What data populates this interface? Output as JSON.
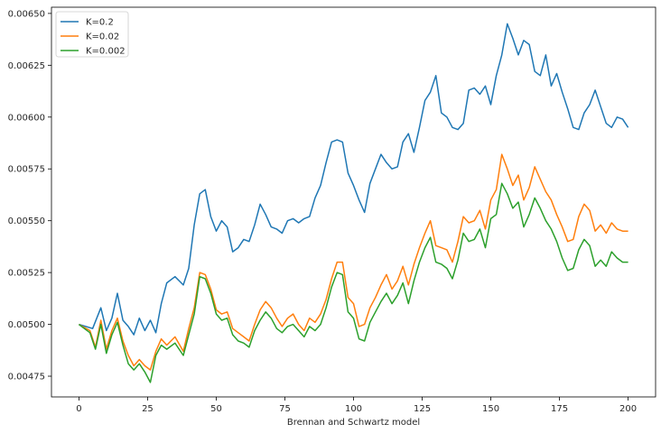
{
  "chart_data": {
    "type": "line",
    "title": "",
    "xlabel": "Brennan and Schwartz model",
    "ylabel": "",
    "xlim": [
      -10,
      210
    ],
    "ylim": [
      0.00465,
      0.00653
    ],
    "xticks": [
      0,
      25,
      50,
      75,
      100,
      125,
      150,
      175,
      200
    ],
    "yticks": [
      0.00475,
      0.005,
      0.00525,
      0.0055,
      0.00575,
      0.006,
      0.00625,
      0.0065
    ],
    "ytick_labels": [
      "0.00475",
      "0.00500",
      "0.00525",
      "0.00550",
      "0.00575",
      "0.00600",
      "0.00625",
      "0.00650"
    ],
    "grid": false,
    "legend_position": "top-left",
    "series": [
      {
        "name": "K=0.2",
        "color": "#1f77b4",
        "x": [
          0,
          5,
          8,
          10,
          12,
          14,
          16,
          18,
          20,
          22,
          24,
          26,
          28,
          30,
          32,
          35,
          38,
          40,
          42,
          44,
          46,
          48,
          50,
          52,
          54,
          56,
          58,
          60,
          62,
          64,
          66,
          68,
          70,
          72,
          74,
          76,
          78,
          80,
          82,
          84,
          86,
          88,
          90,
          92,
          94,
          96,
          98,
          100,
          102,
          104,
          106,
          108,
          110,
          112,
          114,
          116,
          118,
          120,
          122,
          124,
          126,
          128,
          130,
          132,
          134,
          136,
          138,
          140,
          142,
          144,
          146,
          148,
          150,
          152,
          154,
          156,
          158,
          160,
          162,
          164,
          166,
          168,
          170,
          172,
          174,
          176,
          178,
          180,
          182,
          184,
          186,
          188,
          190,
          192,
          194,
          196,
          198,
          200
        ],
        "values": [
          0.005,
          0.00498,
          0.00508,
          0.00497,
          0.00503,
          0.00515,
          0.00502,
          0.00499,
          0.00495,
          0.00503,
          0.00497,
          0.00502,
          0.00496,
          0.0051,
          0.0052,
          0.00523,
          0.00519,
          0.00527,
          0.00548,
          0.00563,
          0.00565,
          0.00552,
          0.00545,
          0.0055,
          0.00547,
          0.00535,
          0.00537,
          0.00541,
          0.0054,
          0.00548,
          0.00558,
          0.00553,
          0.00547,
          0.00546,
          0.00544,
          0.0055,
          0.00551,
          0.00549,
          0.00551,
          0.00552,
          0.00561,
          0.00567,
          0.00578,
          0.00588,
          0.00589,
          0.00588,
          0.00573,
          0.00567,
          0.0056,
          0.00554,
          0.00568,
          0.00575,
          0.00582,
          0.00578,
          0.00575,
          0.00576,
          0.00588,
          0.00592,
          0.00583,
          0.00595,
          0.00608,
          0.00612,
          0.0062,
          0.00602,
          0.006,
          0.00595,
          0.00594,
          0.00597,
          0.00613,
          0.00614,
          0.00611,
          0.00615,
          0.00606,
          0.0062,
          0.0063,
          0.00645,
          0.00638,
          0.0063,
          0.00637,
          0.00635,
          0.00622,
          0.0062,
          0.0063,
          0.00615,
          0.00621,
          0.00612,
          0.00604,
          0.00595,
          0.00594,
          0.00602,
          0.00606,
          0.00613,
          0.00605,
          0.00597,
          0.00595,
          0.006,
          0.00599,
          0.00595
        ]
      },
      {
        "name": "K=0.02",
        "color": "#ff7f0e",
        "x": [
          0,
          4,
          6,
          8,
          10,
          12,
          14,
          16,
          18,
          20,
          22,
          24,
          26,
          28,
          30,
          32,
          35,
          38,
          40,
          42,
          44,
          46,
          48,
          50,
          52,
          54,
          56,
          58,
          60,
          62,
          64,
          66,
          68,
          70,
          72,
          74,
          76,
          78,
          80,
          82,
          84,
          86,
          88,
          90,
          92,
          94,
          96,
          98,
          100,
          102,
          104,
          106,
          108,
          110,
          112,
          114,
          116,
          118,
          120,
          122,
          124,
          126,
          128,
          130,
          132,
          134,
          136,
          138,
          140,
          142,
          144,
          146,
          148,
          150,
          152,
          154,
          156,
          158,
          160,
          162,
          164,
          166,
          168,
          170,
          172,
          174,
          176,
          178,
          180,
          182,
          184,
          186,
          188,
          190,
          192,
          194,
          196,
          198,
          200
        ],
        "values": [
          0.005,
          0.00497,
          0.00489,
          0.00502,
          0.00488,
          0.00497,
          0.00503,
          0.00492,
          0.00485,
          0.0048,
          0.00483,
          0.0048,
          0.00478,
          0.00487,
          0.00493,
          0.0049,
          0.00494,
          0.00487,
          0.00498,
          0.00508,
          0.00525,
          0.00524,
          0.00517,
          0.00507,
          0.00505,
          0.00506,
          0.00498,
          0.00496,
          0.00494,
          0.00492,
          0.005,
          0.00507,
          0.00511,
          0.00508,
          0.00503,
          0.00499,
          0.00503,
          0.00505,
          0.005,
          0.00497,
          0.00503,
          0.00501,
          0.00505,
          0.00512,
          0.00522,
          0.0053,
          0.0053,
          0.00513,
          0.0051,
          0.00499,
          0.005,
          0.00508,
          0.00513,
          0.00519,
          0.00524,
          0.00517,
          0.00521,
          0.00528,
          0.00519,
          0.00529,
          0.00537,
          0.00544,
          0.0055,
          0.00538,
          0.00537,
          0.00536,
          0.0053,
          0.0054,
          0.00552,
          0.00549,
          0.0055,
          0.00555,
          0.00546,
          0.0056,
          0.00565,
          0.00582,
          0.00575,
          0.00567,
          0.00572,
          0.0056,
          0.00566,
          0.00576,
          0.0057,
          0.00564,
          0.0056,
          0.00553,
          0.00547,
          0.0054,
          0.00541,
          0.00552,
          0.00558,
          0.00555,
          0.00545,
          0.00548,
          0.00544,
          0.00549,
          0.00546,
          0.00545,
          0.00545
        ]
      },
      {
        "name": "K=0.002",
        "color": "#2ca02c",
        "x": [
          0,
          4,
          6,
          8,
          10,
          12,
          14,
          16,
          18,
          20,
          22,
          24,
          26,
          28,
          30,
          32,
          35,
          38,
          40,
          42,
          44,
          46,
          48,
          50,
          52,
          54,
          56,
          58,
          60,
          62,
          64,
          66,
          68,
          70,
          72,
          74,
          76,
          78,
          80,
          82,
          84,
          86,
          88,
          90,
          92,
          94,
          96,
          98,
          100,
          102,
          104,
          106,
          108,
          110,
          112,
          114,
          116,
          118,
          120,
          122,
          124,
          126,
          128,
          130,
          132,
          134,
          136,
          138,
          140,
          142,
          144,
          146,
          148,
          150,
          152,
          154,
          156,
          158,
          160,
          162,
          164,
          166,
          168,
          170,
          172,
          174,
          176,
          178,
          180,
          182,
          184,
          186,
          188,
          190,
          192,
          194,
          196,
          198,
          200
        ],
        "values": [
          0.005,
          0.00496,
          0.00488,
          0.005,
          0.00486,
          0.00495,
          0.00501,
          0.0049,
          0.00481,
          0.00478,
          0.00481,
          0.00477,
          0.00472,
          0.00485,
          0.0049,
          0.00488,
          0.00491,
          0.00485,
          0.00495,
          0.00505,
          0.00523,
          0.00522,
          0.00515,
          0.00505,
          0.00502,
          0.00503,
          0.00495,
          0.00492,
          0.00491,
          0.00489,
          0.00497,
          0.00502,
          0.00506,
          0.00503,
          0.00498,
          0.00496,
          0.00499,
          0.005,
          0.00497,
          0.00494,
          0.00499,
          0.00497,
          0.005,
          0.00508,
          0.00518,
          0.00525,
          0.00524,
          0.00506,
          0.00503,
          0.00493,
          0.00492,
          0.00501,
          0.00506,
          0.00511,
          0.00515,
          0.0051,
          0.00514,
          0.0052,
          0.0051,
          0.00521,
          0.0053,
          0.00537,
          0.00542,
          0.0053,
          0.00529,
          0.00527,
          0.00522,
          0.00531,
          0.00544,
          0.0054,
          0.00541,
          0.00546,
          0.00537,
          0.00551,
          0.00553,
          0.00568,
          0.00563,
          0.00556,
          0.00559,
          0.00547,
          0.00553,
          0.00561,
          0.00556,
          0.0055,
          0.00546,
          0.0054,
          0.00532,
          0.00526,
          0.00527,
          0.00536,
          0.00541,
          0.00538,
          0.00528,
          0.00531,
          0.00528,
          0.00535,
          0.00532,
          0.0053,
          0.0053
        ]
      }
    ]
  }
}
